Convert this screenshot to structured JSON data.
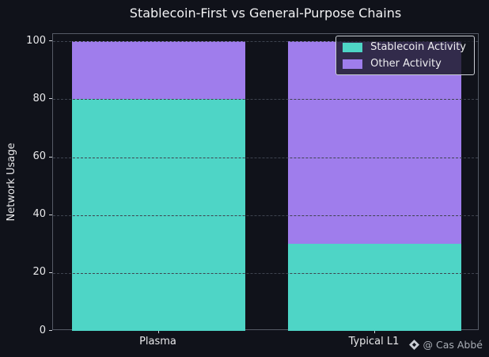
{
  "chart_data": {
    "type": "bar",
    "stacked": true,
    "title": "Stablecoin-First vs General-Purpose Chains",
    "ylabel": "Network Usage",
    "xlabel": "",
    "categories": [
      "Plasma",
      "Typical L1"
    ],
    "series": [
      {
        "name": "Stablecoin Activity",
        "color": "#4ed5c6",
        "values": [
          80,
          30
        ]
      },
      {
        "name": "Other Activity",
        "color": "#9f7dec",
        "values": [
          20,
          70
        ]
      }
    ],
    "ylim": [
      0,
      102.5
    ],
    "yticks": [
      0,
      20,
      40,
      60,
      80,
      100
    ],
    "grid": "horizontal-dashed",
    "legend_position": "upper-right"
  },
  "watermark": {
    "icon": "diamond-icon",
    "text": "@ Cas Abbé"
  },
  "colors": {
    "background": "#10121a",
    "bar_teal": "#4ed5c6",
    "bar_purple": "#9f7dec",
    "grid": "#3e434f",
    "spine": "#565b66",
    "text": "#e8e8ea",
    "title": "#f2f2f4",
    "legend_border": "#c9cdd3",
    "watermark_text": "#a9aeb6"
  }
}
